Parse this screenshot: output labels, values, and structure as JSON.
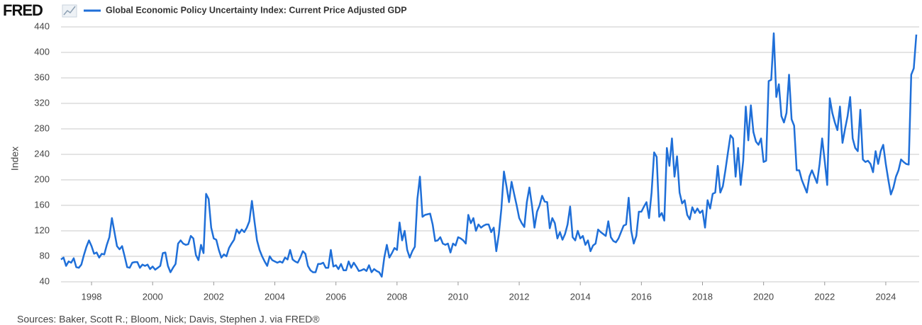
{
  "logo": "FRED",
  "source": "Sources: Baker, Scott R.; Bloom, Nick; Davis, Stephen J. via FRED®",
  "chart_data": {
    "type": "line",
    "ylabel": "Index",
    "ylim": [
      40,
      440
    ],
    "yticks": [
      40,
      80,
      120,
      160,
      200,
      240,
      280,
      320,
      360,
      400,
      440
    ],
    "xlim": [
      "1997-01",
      "2025-01"
    ],
    "xticks": [
      {
        "value": "1998-01",
        "label": "1998"
      },
      {
        "value": "2000-01",
        "label": "2000"
      },
      {
        "value": "2002-01",
        "label": "2002"
      },
      {
        "value": "2004-01",
        "label": "2004"
      },
      {
        "value": "2006-01",
        "label": "2006"
      },
      {
        "value": "2008-01",
        "label": "2008"
      },
      {
        "value": "2010-01",
        "label": "2010"
      },
      {
        "value": "2012-01",
        "label": "2012"
      },
      {
        "value": "2014-01",
        "label": "2014"
      },
      {
        "value": "2016-01",
        "label": "2016"
      },
      {
        "value": "2018-01",
        "label": "2018"
      },
      {
        "value": "2020-01",
        "label": "2020"
      },
      {
        "value": "2022-01",
        "label": "2022"
      },
      {
        "value": "2024-01",
        "label": "2024"
      }
    ],
    "grid": true,
    "x": [
      "1997-01",
      "1997-02",
      "1997-03",
      "1997-04",
      "1997-05",
      "1997-06",
      "1997-07",
      "1997-08",
      "1997-09",
      "1997-10",
      "1997-11",
      "1997-12",
      "1998-01",
      "1998-02",
      "1998-03",
      "1998-04",
      "1998-05",
      "1998-06",
      "1998-07",
      "1998-08",
      "1998-09",
      "1998-10",
      "1998-11",
      "1998-12",
      "1999-01",
      "1999-02",
      "1999-03",
      "1999-04",
      "1999-05",
      "1999-06",
      "1999-07",
      "1999-08",
      "1999-09",
      "1999-10",
      "1999-11",
      "1999-12",
      "2000-01",
      "2000-02",
      "2000-03",
      "2000-04",
      "2000-05",
      "2000-06",
      "2000-07",
      "2000-08",
      "2000-09",
      "2000-10",
      "2000-11",
      "2000-12",
      "2001-01",
      "2001-02",
      "2001-03",
      "2001-04",
      "2001-05",
      "2001-06",
      "2001-07",
      "2001-08",
      "2001-09",
      "2001-10",
      "2001-11",
      "2001-12",
      "2002-01",
      "2002-02",
      "2002-03",
      "2002-04",
      "2002-05",
      "2002-06",
      "2002-07",
      "2002-08",
      "2002-09",
      "2002-10",
      "2002-11",
      "2002-12",
      "2003-01",
      "2003-02",
      "2003-03",
      "2003-04",
      "2003-05",
      "2003-06",
      "2003-07",
      "2003-08",
      "2003-09",
      "2003-10",
      "2003-11",
      "2003-12",
      "2004-01",
      "2004-02",
      "2004-03",
      "2004-04",
      "2004-05",
      "2004-06",
      "2004-07",
      "2004-08",
      "2004-09",
      "2004-10",
      "2004-11",
      "2004-12",
      "2005-01",
      "2005-02",
      "2005-03",
      "2005-04",
      "2005-05",
      "2005-06",
      "2005-07",
      "2005-08",
      "2005-09",
      "2005-10",
      "2005-11",
      "2005-12",
      "2006-01",
      "2006-02",
      "2006-03",
      "2006-04",
      "2006-05",
      "2006-06",
      "2006-07",
      "2006-08",
      "2006-09",
      "2006-10",
      "2006-11",
      "2006-12",
      "2007-01",
      "2007-02",
      "2007-03",
      "2007-04",
      "2007-05",
      "2007-06",
      "2007-07",
      "2007-08",
      "2007-09",
      "2007-10",
      "2007-11",
      "2007-12",
      "2008-01",
      "2008-02",
      "2008-03",
      "2008-04",
      "2008-05",
      "2008-06",
      "2008-07",
      "2008-08",
      "2008-09",
      "2008-10",
      "2008-11",
      "2008-12",
      "2009-01",
      "2009-02",
      "2009-03",
      "2009-04",
      "2009-05",
      "2009-06",
      "2009-07",
      "2009-08",
      "2009-09",
      "2009-10",
      "2009-11",
      "2009-12",
      "2010-01",
      "2010-02",
      "2010-03",
      "2010-04",
      "2010-05",
      "2010-06",
      "2010-07",
      "2010-08",
      "2010-09",
      "2010-10",
      "2010-11",
      "2010-12",
      "2011-01",
      "2011-02",
      "2011-03",
      "2011-04",
      "2011-05",
      "2011-06",
      "2011-07",
      "2011-08",
      "2011-09",
      "2011-10",
      "2011-11",
      "2011-12",
      "2012-01",
      "2012-02",
      "2012-03",
      "2012-04",
      "2012-05",
      "2012-06",
      "2012-07",
      "2012-08",
      "2012-09",
      "2012-10",
      "2012-11",
      "2012-12",
      "2013-01",
      "2013-02",
      "2013-03",
      "2013-04",
      "2013-05",
      "2013-06",
      "2013-07",
      "2013-08",
      "2013-09",
      "2013-10",
      "2013-11",
      "2013-12",
      "2014-01",
      "2014-02",
      "2014-03",
      "2014-04",
      "2014-05",
      "2014-06",
      "2014-07",
      "2014-08",
      "2014-09",
      "2014-10",
      "2014-11",
      "2014-12",
      "2015-01",
      "2015-02",
      "2015-03",
      "2015-04",
      "2015-05",
      "2015-06",
      "2015-07",
      "2015-08",
      "2015-09",
      "2015-10",
      "2015-11",
      "2015-12",
      "2016-01",
      "2016-02",
      "2016-03",
      "2016-04",
      "2016-05",
      "2016-06",
      "2016-07",
      "2016-08",
      "2016-09",
      "2016-10",
      "2016-11",
      "2016-12",
      "2017-01",
      "2017-02",
      "2017-03",
      "2017-04",
      "2017-05",
      "2017-06",
      "2017-07",
      "2017-08",
      "2017-09",
      "2017-10",
      "2017-11",
      "2017-12",
      "2018-01",
      "2018-02",
      "2018-03",
      "2018-04",
      "2018-05",
      "2018-06",
      "2018-07",
      "2018-08",
      "2018-09",
      "2018-10",
      "2018-11",
      "2018-12",
      "2019-01",
      "2019-02",
      "2019-03",
      "2019-04",
      "2019-05",
      "2019-06",
      "2019-07",
      "2019-08",
      "2019-09",
      "2019-10",
      "2019-11",
      "2019-12",
      "2020-01",
      "2020-02",
      "2020-03",
      "2020-04",
      "2020-05",
      "2020-06",
      "2020-07",
      "2020-08",
      "2020-09",
      "2020-10",
      "2020-11",
      "2020-12",
      "2021-01",
      "2021-02",
      "2021-03",
      "2021-04",
      "2021-05",
      "2021-06",
      "2021-07",
      "2021-08",
      "2021-09",
      "2021-10",
      "2021-11",
      "2021-12",
      "2022-01",
      "2022-02",
      "2022-03",
      "2022-04",
      "2022-05",
      "2022-06",
      "2022-07",
      "2022-08",
      "2022-09",
      "2022-10",
      "2022-11",
      "2022-12",
      "2023-01",
      "2023-02",
      "2023-03",
      "2023-04",
      "2023-05",
      "2023-06",
      "2023-07",
      "2023-08",
      "2023-09",
      "2023-10",
      "2023-11",
      "2023-12",
      "2024-01",
      "2024-02",
      "2024-03",
      "2024-04",
      "2024-05",
      "2024-06",
      "2024-07",
      "2024-08",
      "2024-09",
      "2024-10",
      "2024-11",
      "2024-12",
      "2025-01"
    ],
    "series": [
      {
        "name": "Global Economic Policy Uncertainty Index: Current Price Adjusted GDP",
        "color": "#1f6fd8",
        "values": [
          75,
          78,
          65,
          72,
          70,
          77,
          63,
          62,
          67,
          82,
          95,
          105,
          96,
          84,
          86,
          78,
          84,
          83,
          98,
          110,
          140,
          118,
          96,
          91,
          96,
          80,
          63,
          62,
          70,
          71,
          71,
          62,
          67,
          65,
          67,
          60,
          64,
          59,
          62,
          65,
          85,
          86,
          65,
          55,
          62,
          68,
          100,
          105,
          100,
          98,
          99,
          112,
          108,
          82,
          74,
          98,
          85,
          178,
          170,
          125,
          108,
          106,
          90,
          78,
          83,
          80,
          93,
          100,
          106,
          122,
          116,
          122,
          118,
          125,
          135,
          167,
          135,
          105,
          90,
          80,
          72,
          65,
          80,
          74,
          72,
          70,
          72,
          70,
          78,
          75,
          90,
          75,
          72,
          70,
          78,
          88,
          84,
          65,
          58,
          55,
          55,
          68,
          68,
          70,
          62,
          62,
          90,
          64,
          66,
          60,
          68,
          58,
          58,
          72,
          62,
          70,
          64,
          57,
          58,
          60,
          57,
          66,
          55,
          60,
          57,
          55,
          48,
          78,
          98,
          78,
          85,
          93,
          90,
          133,
          105,
          120,
          90,
          78,
          88,
          95,
          170,
          205,
          142,
          145,
          146,
          147,
          130,
          104,
          105,
          110,
          100,
          98,
          100,
          86,
          100,
          97,
          110,
          108,
          105,
          100,
          145,
          132,
          140,
          120,
          130,
          125,
          128,
          130,
          130,
          118,
          125,
          88,
          115,
          155,
          213,
          190,
          165,
          197,
          178,
          160,
          140,
          132,
          126,
          165,
          188,
          160,
          125,
          150,
          160,
          175,
          166,
          165,
          124,
          140,
          132,
          108,
          118,
          106,
          115,
          130,
          158,
          110,
          105,
          120,
          108,
          112,
          98,
          105,
          88,
          97,
          100,
          122,
          118,
          115,
          112,
          135,
          110,
          104,
          102,
          108,
          118,
          128,
          130,
          172,
          120,
          100,
          112,
          150,
          150,
          158,
          165,
          140,
          180,
          243,
          236,
          142,
          148,
          136,
          250,
          222,
          265,
          205,
          237,
          180,
          163,
          168,
          145,
          138,
          157,
          148,
          155,
          148,
          152,
          125,
          168,
          155,
          178,
          180,
          222,
          180,
          190,
          215,
          243,
          270,
          265,
          205,
          250,
          192,
          230,
          315,
          262,
          317,
          275,
          260,
          255,
          265,
          228,
          230,
          355,
          357,
          430,
          330,
          350,
          300,
          290,
          305,
          365,
          295,
          285,
          215,
          215,
          200,
          190,
          180,
          205,
          215,
          205,
          195,
          225,
          265,
          230,
          192,
          328,
          305,
          290,
          278,
          315,
          258,
          280,
          300,
          330,
          265,
          250,
          245,
          310,
          232,
          228,
          230,
          225,
          212,
          245,
          225,
          245,
          255,
          225,
          200,
          177,
          188,
          205,
          215,
          232,
          228,
          225,
          224,
          365,
          375,
          428
        ]
      }
    ]
  }
}
